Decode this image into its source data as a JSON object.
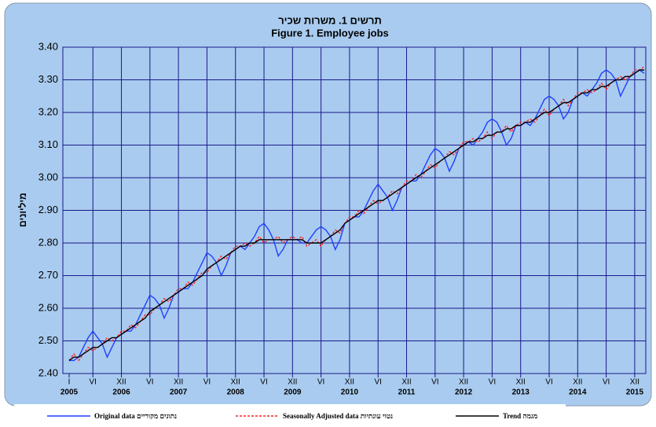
{
  "chart_data": {
    "type": "line",
    "title": "תרשים 1. משרות שכיר",
    "subtitle": "Figure 1.  Employee jobs",
    "y_label": "מיליונים",
    "categories": [
      "I",
      null,
      null,
      null,
      null,
      "VI",
      null,
      null,
      null,
      null,
      null,
      "XII",
      null,
      null,
      null,
      null,
      null,
      "VI",
      null,
      null,
      null,
      null,
      null,
      "XII",
      null,
      null,
      null,
      null,
      null,
      "VI",
      null,
      null,
      null,
      null,
      null,
      "XII",
      null,
      null,
      null,
      null,
      null,
      "VI",
      null,
      null,
      null,
      null,
      null,
      "XII",
      null,
      null,
      null,
      null,
      null,
      "VI",
      null,
      null,
      null,
      null,
      null,
      "XII",
      null,
      null,
      null,
      null,
      null,
      "VI",
      null,
      null,
      null,
      null,
      null,
      "XII",
      null,
      null,
      null,
      null,
      null,
      "VI",
      null,
      null,
      null,
      null,
      null,
      "XII",
      null,
      null,
      null,
      null,
      null,
      "VI",
      null,
      null,
      null,
      null,
      null,
      "XII",
      null,
      null,
      null,
      null,
      null,
      "VI",
      null,
      null,
      null,
      null,
      null,
      "XII",
      null,
      null,
      null,
      null,
      null,
      "VI",
      null,
      null,
      null,
      null,
      null,
      "XII",
      null,
      null
    ],
    "years": [
      "2005",
      "2006",
      "2007",
      "2008",
      "2009",
      "2010",
      "2011",
      "2012",
      "2013",
      "2014",
      "2015"
    ],
    "ylim": [
      2.4,
      3.4
    ],
    "yticks": [
      {
        "value": 2.4,
        "label": "2.40"
      },
      {
        "value": 2.5,
        "label": "2.50"
      },
      {
        "value": 2.6,
        "label": "2.60"
      },
      {
        "value": 2.7,
        "label": "2.70"
      },
      {
        "value": 2.8,
        "label": "2.80"
      },
      {
        "value": 2.9,
        "label": "2.90"
      },
      {
        "value": 3.0,
        "label": "3.00"
      },
      {
        "value": 3.1,
        "label": "3.10"
      },
      {
        "value": 3.2,
        "label": "3.20"
      },
      {
        "value": 3.3,
        "label": "3.30"
      },
      {
        "value": 3.4,
        "label": "3.40"
      }
    ],
    "grid": true,
    "series": [
      {
        "name": "Original data נתונים מקוריים",
        "color": "#1f3fff",
        "dash": false,
        "values": [
          2.44,
          2.44,
          2.45,
          2.48,
          2.51,
          2.53,
          2.51,
          2.49,
          2.45,
          2.48,
          2.51,
          2.52,
          2.53,
          2.53,
          2.55,
          2.58,
          2.61,
          2.64,
          2.63,
          2.61,
          2.57,
          2.6,
          2.64,
          2.65,
          2.66,
          2.66,
          2.68,
          2.71,
          2.74,
          2.77,
          2.76,
          2.74,
          2.7,
          2.73,
          2.77,
          2.78,
          2.79,
          2.78,
          2.8,
          2.82,
          2.85,
          2.86,
          2.84,
          2.81,
          2.76,
          2.78,
          2.81,
          2.81,
          2.81,
          2.8,
          2.8,
          2.82,
          2.84,
          2.85,
          2.84,
          2.82,
          2.78,
          2.81,
          2.86,
          2.87,
          2.88,
          2.88,
          2.9,
          2.93,
          2.96,
          2.98,
          2.96,
          2.94,
          2.9,
          2.93,
          2.97,
          2.98,
          2.99,
          2.99,
          3.01,
          3.04,
          3.07,
          3.09,
          3.08,
          3.06,
          3.02,
          3.05,
          3.09,
          3.1,
          3.11,
          3.1,
          3.12,
          3.14,
          3.17,
          3.18,
          3.17,
          3.14,
          3.1,
          3.12,
          3.16,
          3.16,
          3.17,
          3.16,
          3.18,
          3.21,
          3.24,
          3.25,
          3.24,
          3.22,
          3.18,
          3.2,
          3.24,
          3.25,
          3.26,
          3.25,
          3.27,
          3.29,
          3.32,
          3.33,
          3.32,
          3.3,
          3.25,
          3.28,
          3.31,
          3.32,
          3.33,
          3.32
        ]
      },
      {
        "name": "Seasonally Adjusted data נטוי עונתיות",
        "color": "#ff2020",
        "dash": true,
        "values": [
          2.44,
          2.46,
          2.44,
          2.46,
          2.48,
          2.47,
          2.48,
          2.49,
          2.51,
          2.5,
          2.51,
          2.53,
          2.53,
          2.55,
          2.54,
          2.56,
          2.58,
          2.58,
          2.6,
          2.61,
          2.63,
          2.62,
          2.64,
          2.66,
          2.66,
          2.68,
          2.67,
          2.69,
          2.71,
          2.71,
          2.73,
          2.74,
          2.76,
          2.75,
          2.77,
          2.79,
          2.79,
          2.8,
          2.79,
          2.8,
          2.82,
          2.8,
          2.81,
          2.81,
          2.82,
          2.8,
          2.81,
          2.82,
          2.81,
          2.82,
          2.79,
          2.8,
          2.81,
          2.79,
          2.81,
          2.82,
          2.84,
          2.83,
          2.86,
          2.88,
          2.88,
          2.9,
          2.89,
          2.91,
          2.93,
          2.92,
          2.93,
          2.94,
          2.96,
          2.95,
          2.97,
          2.99,
          2.99,
          3.01,
          3.0,
          3.02,
          3.04,
          3.03,
          3.05,
          3.06,
          3.08,
          3.07,
          3.09,
          3.11,
          3.11,
          3.12,
          3.11,
          3.12,
          3.14,
          3.12,
          3.14,
          3.14,
          3.16,
          3.14,
          3.16,
          3.17,
          3.17,
          3.18,
          3.17,
          3.19,
          3.21,
          3.19,
          3.21,
          3.22,
          3.24,
          3.22,
          3.24,
          3.26,
          3.26,
          3.27,
          3.26,
          3.27,
          3.29,
          3.27,
          3.29,
          3.3,
          3.31,
          3.3,
          3.31,
          3.33,
          3.33,
          3.34
        ]
      },
      {
        "name": "Trend מגמה",
        "color": "#000000",
        "dash": false,
        "values": [
          2.44,
          2.45,
          2.45,
          2.46,
          2.47,
          2.48,
          2.48,
          2.49,
          2.5,
          2.51,
          2.51,
          2.52,
          2.53,
          2.54,
          2.55,
          2.56,
          2.57,
          2.59,
          2.6,
          2.61,
          2.62,
          2.63,
          2.64,
          2.65,
          2.66,
          2.67,
          2.68,
          2.69,
          2.7,
          2.72,
          2.73,
          2.74,
          2.75,
          2.76,
          2.77,
          2.78,
          2.79,
          2.79,
          2.8,
          2.8,
          2.81,
          2.81,
          2.81,
          2.81,
          2.81,
          2.81,
          2.81,
          2.81,
          2.81,
          2.81,
          2.8,
          2.8,
          2.8,
          2.8,
          2.81,
          2.82,
          2.83,
          2.84,
          2.86,
          2.87,
          2.88,
          2.89,
          2.9,
          2.91,
          2.92,
          2.93,
          2.93,
          2.94,
          2.95,
          2.96,
          2.97,
          2.98,
          2.99,
          3.0,
          3.01,
          3.02,
          3.03,
          3.04,
          3.05,
          3.06,
          3.07,
          3.08,
          3.09,
          3.1,
          3.11,
          3.11,
          3.12,
          3.12,
          3.13,
          3.13,
          3.14,
          3.14,
          3.15,
          3.15,
          3.16,
          3.16,
          3.17,
          3.17,
          3.18,
          3.19,
          3.2,
          3.2,
          3.21,
          3.22,
          3.23,
          3.23,
          3.24,
          3.25,
          3.26,
          3.26,
          3.27,
          3.27,
          3.28,
          3.28,
          3.29,
          3.3,
          3.3,
          3.31,
          3.31,
          3.32,
          3.33,
          3.33
        ]
      }
    ]
  }
}
